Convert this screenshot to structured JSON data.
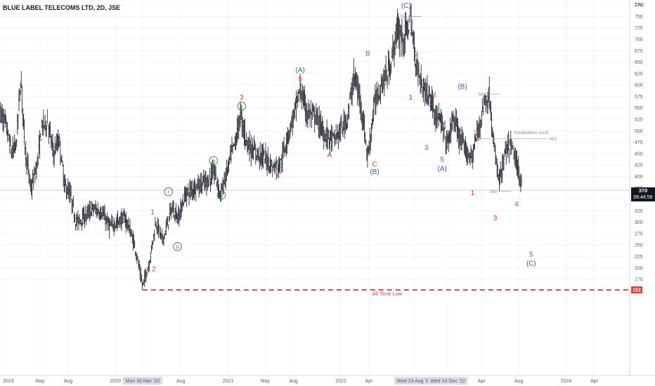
{
  "header": {
    "title": "BLUE LABEL TELECOMS LTD, 2D, JSE"
  },
  "colors": {
    "candle": "#131722",
    "wave_red": "#e53935",
    "wave_blue": "#3b5ca8",
    "wave_green": "#2e7d32",
    "dashed_line": "#e53935",
    "grid": "#eceef2",
    "axis_text": "#555a66"
  },
  "chart_data": {
    "type": "candlestick",
    "title": "BLUE LABEL TELECOMS LTD, 2D, JSE",
    "currency": "ZAC",
    "ylim": [
      150,
      775
    ],
    "y_ticks": [
      175,
      200,
      225,
      250,
      275,
      300,
      325,
      350,
      375,
      400,
      425,
      450,
      475,
      500,
      525,
      550,
      575,
      600,
      625,
      650,
      675,
      700,
      725,
      750,
      775
    ],
    "x_tick_labels": [
      {
        "label": "2019",
        "t": 0.0
      },
      {
        "label": "May",
        "t": 0.33
      },
      {
        "label": "Aug",
        "t": 0.58
      },
      {
        "label": "2020",
        "t": 1.0
      },
      {
        "label": "Mon 30 Mar '20",
        "t": 1.24,
        "highlight": true
      },
      {
        "label": "Aug",
        "t": 1.58
      },
      {
        "label": "2021",
        "t": 2.0
      },
      {
        "label": "May",
        "t": 2.33
      },
      {
        "label": "Aug",
        "t": 2.58
      },
      {
        "label": "2022",
        "t": 3.0
      },
      {
        "label": "Apr",
        "t": 3.25
      },
      {
        "label": "Wed 24 Aug '22",
        "t": 3.65,
        "highlight": true
      },
      {
        "label": "Wed 14 Dec '22",
        "t": 3.95,
        "highlight": true
      },
      {
        "label": "Apr",
        "t": 4.25
      },
      {
        "label": "Aug",
        "t": 4.58
      },
      {
        "label": "2024",
        "t": 5.0
      },
      {
        "label": "Apr",
        "t": 5.25
      }
    ],
    "price_path": [
      [
        -0.02,
        540
      ],
      [
        0.03,
        510
      ],
      [
        0.08,
        450
      ],
      [
        0.12,
        470
      ],
      [
        0.16,
        615
      ],
      [
        0.2,
        460
      ],
      [
        0.25,
        370
      ],
      [
        0.3,
        420
      ],
      [
        0.35,
        510
      ],
      [
        0.4,
        520
      ],
      [
        0.45,
        450
      ],
      [
        0.5,
        480
      ],
      [
        0.55,
        380
      ],
      [
        0.6,
        360
      ],
      [
        0.65,
        300
      ],
      [
        0.72,
        310
      ],
      [
        0.8,
        330
      ],
      [
        0.88,
        320
      ],
      [
        0.95,
        290
      ],
      [
        1.02,
        300
      ],
      [
        1.08,
        310
      ],
      [
        1.12,
        290
      ],
      [
        1.18,
        240
      ],
      [
        1.24,
        160
      ],
      [
        1.3,
        210
      ],
      [
        1.36,
        300
      ],
      [
        1.42,
        260
      ],
      [
        1.5,
        330
      ],
      [
        1.56,
        310
      ],
      [
        1.62,
        360
      ],
      [
        1.72,
        380
      ],
      [
        1.82,
        390
      ],
      [
        1.88,
        410
      ],
      [
        1.93,
        360
      ],
      [
        1.98,
        400
      ],
      [
        2.03,
        450
      ],
      [
        2.07,
        480
      ],
      [
        2.11,
        535
      ],
      [
        2.15,
        490
      ],
      [
        2.2,
        460
      ],
      [
        2.26,
        450
      ],
      [
        2.33,
        440
      ],
      [
        2.4,
        420
      ],
      [
        2.47,
        430
      ],
      [
        2.52,
        480
      ],
      [
        2.58,
        530
      ],
      [
        2.64,
        590
      ],
      [
        2.7,
        540
      ],
      [
        2.78,
        530
      ],
      [
        2.86,
        490
      ],
      [
        2.94,
        480
      ],
      [
        3.0,
        500
      ],
      [
        3.06,
        530
      ],
      [
        3.12,
        620
      ],
      [
        3.18,
        560
      ],
      [
        3.24,
        440
      ],
      [
        3.3,
        560
      ],
      [
        3.36,
        600
      ],
      [
        3.44,
        640
      ],
      [
        3.5,
        720
      ],
      [
        3.56,
        700
      ],
      [
        3.62,
        745
      ],
      [
        3.66,
        660
      ],
      [
        3.72,
        600
      ],
      [
        3.78,
        580
      ],
      [
        3.84,
        540
      ],
      [
        3.9,
        510
      ],
      [
        3.95,
        470
      ],
      [
        4.0,
        530
      ],
      [
        4.06,
        480
      ],
      [
        4.1,
        460
      ],
      [
        4.16,
        440
      ],
      [
        4.22,
        500
      ],
      [
        4.27,
        560
      ],
      [
        4.32,
        575
      ],
      [
        4.36,
        460
      ],
      [
        4.41,
        390
      ],
      [
        4.46,
        450
      ],
      [
        4.51,
        470
      ],
      [
        4.56,
        430
      ],
      [
        4.61,
        372
      ]
    ],
    "current_price": {
      "value": 370,
      "countdown": "06:44:56"
    },
    "horizontal_levels": [
      {
        "value": 152,
        "label": "All Time Low",
        "badge": "152",
        "style": "dashed-red"
      },
      {
        "value": 370,
        "style": "thin-gray"
      }
    ],
    "price_annotations": [
      {
        "text": "750",
        "t": 3.6,
        "y": 750
      },
      {
        "text": "580",
        "t": 4.3,
        "y": 580
      },
      {
        "text": "483",
        "t": 4.85,
        "y": 483
      },
      {
        "text": "368",
        "t": 4.4,
        "y": 368
      },
      {
        "text": "Invalidation short",
        "t": 4.85,
        "y": 490
      }
    ],
    "wave_labels": [
      {
        "text": "1",
        "t": 1.33,
        "y": 317,
        "color": "red"
      },
      {
        "text": "2",
        "t": 1.34,
        "y": 193,
        "color": "red"
      },
      {
        "text": "i",
        "t": 1.47,
        "y": 362,
        "color": "green",
        "circle": true
      },
      {
        "text": "ii",
        "t": 1.55,
        "y": 242,
        "color": "green",
        "circle": true
      },
      {
        "text": "iii",
        "t": 1.87,
        "y": 430,
        "color": "green",
        "circle": true
      },
      {
        "text": "iv",
        "t": 1.94,
        "y": 355,
        "color": "green",
        "circle": true
      },
      {
        "text": "3",
        "t": 2.12,
        "y": 568,
        "color": "red"
      },
      {
        "text": "v",
        "t": 2.12,
        "y": 549,
        "color": "green",
        "circle": true
      },
      {
        "text": "4",
        "t": 2.44,
        "y": 396,
        "color": "red"
      },
      {
        "text": "(A)",
        "t": 2.64,
        "y": 628,
        "color": "blue"
      },
      {
        "text": "5",
        "t": 2.64,
        "y": 608,
        "color": "red"
      },
      {
        "text": "A",
        "t": 2.9,
        "y": 442,
        "color": "red"
      },
      {
        "text": "B",
        "t": 3.24,
        "y": 664,
        "color": "red"
      },
      {
        "text": "C",
        "t": 3.3,
        "y": 422,
        "color": "red"
      },
      {
        "text": "(B)",
        "t": 3.3,
        "y": 405,
        "color": "blue"
      },
      {
        "text": "(C)",
        "t": 3.58,
        "y": 769,
        "color": "blue"
      },
      {
        "text": "2",
        "t": 3.67,
        "y": 663,
        "color": "red"
      },
      {
        "text": "1",
        "t": 3.62,
        "y": 568,
        "color": "red"
      },
      {
        "text": "4",
        "t": 3.83,
        "y": 573,
        "color": "red"
      },
      {
        "text": "3",
        "t": 3.76,
        "y": 458,
        "color": "red"
      },
      {
        "text": "5",
        "t": 3.9,
        "y": 432,
        "color": "red"
      },
      {
        "text": "(A)",
        "t": 3.9,
        "y": 412,
        "color": "blue"
      },
      {
        "text": "(B)",
        "t": 4.08,
        "y": 592,
        "color": "blue"
      },
      {
        "text": "2",
        "t": 4.2,
        "y": 490,
        "color": "red"
      },
      {
        "text": "1",
        "t": 4.17,
        "y": 359,
        "color": "red"
      },
      {
        "text": "4",
        "t": 4.56,
        "y": 335,
        "color": "red"
      },
      {
        "text": "3",
        "t": 4.37,
        "y": 304,
        "color": "red"
      },
      {
        "text": "5",
        "t": 4.69,
        "y": 225,
        "color": "red"
      },
      {
        "text": "(C)",
        "t": 4.69,
        "y": 205,
        "color": "blue"
      }
    ]
  }
}
